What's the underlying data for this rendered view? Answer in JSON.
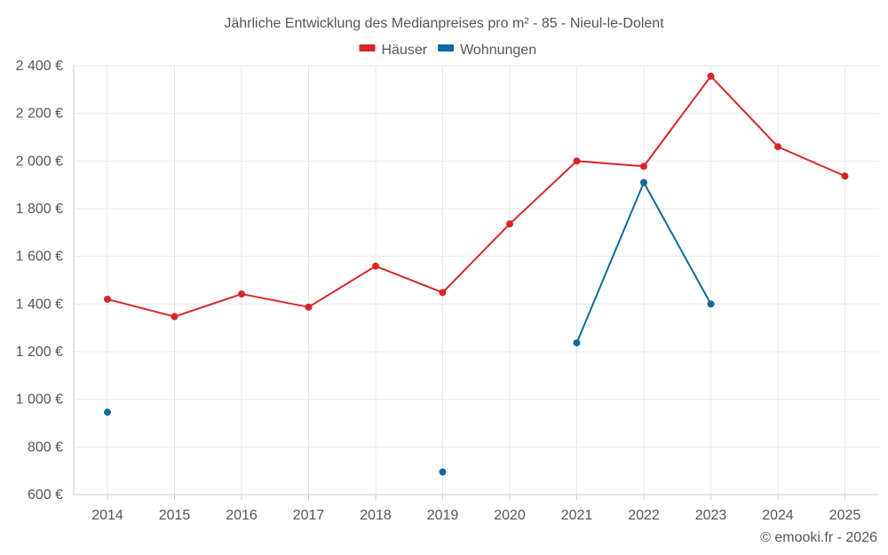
{
  "chart_data": {
    "type": "line",
    "title": "Jährliche Entwicklung des Medianpreises pro m² - 85 - Nieul-le-Dolent",
    "categories": [
      "2014",
      "2015",
      "2016",
      "2017",
      "2018",
      "2019",
      "2020",
      "2021",
      "2022",
      "2023",
      "2024",
      "2025"
    ],
    "ylim": [
      600,
      2400
    ],
    "yticks": [
      600,
      800,
      1000,
      1200,
      1400,
      1600,
      1800,
      2000,
      2200,
      2400
    ],
    "ytick_labels": [
      "600 €",
      "800 €",
      "1 000 €",
      "1 200 €",
      "1 400 €",
      "1 600 €",
      "1 800 €",
      "2 000 €",
      "2 200 €",
      "2 400 €"
    ],
    "legend_position": "top-center",
    "grid": true,
    "series": [
      {
        "name": "Häuser",
        "color": "#d62728",
        "values": [
          1420,
          1347,
          1442,
          1387,
          1559,
          1448,
          1736,
          2000,
          1978,
          2356,
          2060,
          1937
        ]
      },
      {
        "name": "Wohnungen",
        "color": "#0e6a9f",
        "values": [
          946,
          null,
          null,
          null,
          null,
          695,
          null,
          1237,
          1910,
          1400,
          null,
          null
        ]
      }
    ]
  },
  "credit": "© emooki.fr - 2026"
}
